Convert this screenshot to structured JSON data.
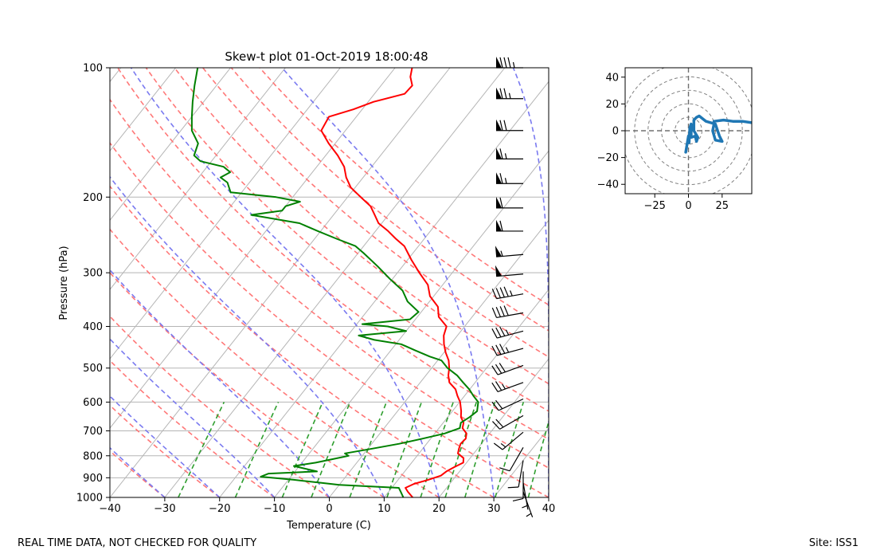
{
  "footer": {
    "left": "REAL TIME DATA, NOT CHECKED FOR QUALITY",
    "right": "Site: ISS1"
  },
  "chart_data": [
    {
      "type": "line",
      "subtype": "skew-t",
      "title": "Skew-t plot 01-Oct-2019 18:00:48",
      "xlabel": "Temperature (C)",
      "ylabel": "Pressure (hPa)",
      "xlim": [
        -40,
        40
      ],
      "ylim": [
        1000,
        100
      ],
      "yscale": "log",
      "skew_deg_per_decade": 62,
      "x_ticks": [
        "−40",
        "−30",
        "−20",
        "−10",
        "0",
        "10",
        "20",
        "30",
        "40"
      ],
      "x_tick_values": [
        -40,
        -30,
        -20,
        -10,
        0,
        10,
        20,
        30,
        40
      ],
      "y_ticks": [
        100,
        200,
        300,
        400,
        500,
        600,
        700,
        800,
        900,
        1000
      ],
      "grid": true,
      "colors": {
        "temperature": "#ff0000",
        "dewpoint": "#008000",
        "dry_adiabat": "#ff7878",
        "moist_adiabat": "#7a7af0",
        "mixing_ratio": "#2e9e2e",
        "isotherm": "#b5b5b5",
        "barb": "#000000"
      },
      "series": [
        {
          "name": "Temperature",
          "points": [
            [
              1000,
              15.2
            ],
            [
              970,
              13.5
            ],
            [
              950,
              12.5
            ],
            [
              930,
              13.5
            ],
            [
              910,
              15.5
            ],
            [
              890,
              17.2
            ],
            [
              870,
              17.6
            ],
            [
              850,
              18.4
            ],
            [
              830,
              19.4
            ],
            [
              810,
              18.8
            ],
            [
              790,
              17.1
            ],
            [
              770,
              16.6
            ],
            [
              750,
              16.2
            ],
            [
              730,
              16.4
            ],
            [
              710,
              15.8
            ],
            [
              690,
              14.3
            ],
            [
              670,
              13.7
            ],
            [
              650,
              12.4
            ],
            [
              630,
              11.6
            ],
            [
              600,
              10.1
            ],
            [
              580,
              8.7
            ],
            [
              560,
              7.4
            ],
            [
              540,
              5.3
            ],
            [
              520,
              4.1
            ],
            [
              500,
              3.2
            ],
            [
              480,
              2.0
            ],
            [
              460,
              0.3
            ],
            [
              440,
              -1.2
            ],
            [
              420,
              -2.5
            ],
            [
              400,
              -3.3
            ],
            [
              380,
              -6.1
            ],
            [
              360,
              -7.7
            ],
            [
              340,
              -10.7
            ],
            [
              320,
              -12.7
            ],
            [
              300,
              -16.0
            ],
            [
              280,
              -19.3
            ],
            [
              260,
              -22.6
            ],
            [
              250,
              -25.2
            ],
            [
              240,
              -27.7
            ],
            [
              230,
              -30.6
            ],
            [
              220,
              -32.5
            ],
            [
              210,
              -34.5
            ],
            [
              200,
              -37.6
            ],
            [
              190,
              -40.8
            ],
            [
              180,
              -43.1
            ],
            [
              170,
              -45.0
            ],
            [
              160,
              -47.8
            ],
            [
              150,
              -51.2
            ],
            [
              140,
              -54.4
            ],
            [
              130,
              -55.0
            ],
            [
              125,
              -51.6
            ],
            [
              120,
              -49.0
            ],
            [
              115,
              -44.5
            ],
            [
              110,
              -44.3
            ],
            [
              105,
              -45.9
            ],
            [
              100,
              -46.9
            ]
          ]
        },
        {
          "name": "Dewpoint",
          "points": [
            [
              1000,
              13.5
            ],
            [
              970,
              12.2
            ],
            [
              950,
              11.3
            ],
            [
              935,
              0.0
            ],
            [
              925,
              -3.5
            ],
            [
              910,
              -9.0
            ],
            [
              895,
              -15.5
            ],
            [
              880,
              -14.5
            ],
            [
              870,
              -6.0
            ],
            [
              860,
              -8.0
            ],
            [
              845,
              -11.0
            ],
            [
              830,
              -7.5
            ],
            [
              815,
              -5.0
            ],
            [
              800,
              -2.5
            ],
            [
              790,
              -3.5
            ],
            [
              770,
              0.8
            ],
            [
              750,
              5.0
            ],
            [
              730,
              8.5
            ],
            [
              710,
              11.8
            ],
            [
              690,
              13.8
            ],
            [
              670,
              13.2
            ],
            [
              650,
              14.0
            ],
            [
              630,
              14.5
            ],
            [
              600,
              13.4
            ],
            [
              580,
              11.6
            ],
            [
              560,
              9.9
            ],
            [
              540,
              7.8
            ],
            [
              520,
              5.7
            ],
            [
              500,
              2.9
            ],
            [
              480,
              0.7
            ],
            [
              470,
              -2.0
            ],
            [
              455,
              -5.5
            ],
            [
              440,
              -9.0
            ],
            [
              430,
              -14.5
            ],
            [
              420,
              -18.0
            ],
            [
              410,
              -10.0
            ],
            [
              400,
              -14.0
            ],
            [
              395,
              -19.0
            ],
            [
              385,
              -11.0
            ],
            [
              370,
              -10.5
            ],
            [
              350,
              -14.0
            ],
            [
              330,
              -16.5
            ],
            [
              310,
              -20.5
            ],
            [
              290,
              -24.5
            ],
            [
              270,
              -29.0
            ],
            [
              260,
              -31.5
            ],
            [
              250,
              -36.0
            ],
            [
              240,
              -40.5
            ],
            [
              230,
              -45.0
            ],
            [
              220,
              -55.0
            ],
            [
              215,
              -50.0
            ],
            [
              210,
              -50.0
            ],
            [
              205,
              -48.0
            ],
            [
              200,
              -53.0
            ],
            [
              195,
              -62.0
            ],
            [
              190,
              -63.0
            ],
            [
              185,
              -64.0
            ],
            [
              180,
              -66.0
            ],
            [
              175,
              -65.0
            ],
            [
              170,
              -67.0
            ],
            [
              165,
              -72.0
            ],
            [
              160,
              -74.0
            ],
            [
              150,
              -75.0
            ],
            [
              140,
              -78.0
            ],
            [
              130,
              -80.0
            ],
            [
              120,
              -82.0
            ],
            [
              110,
              -84.0
            ],
            [
              100,
              -86.0
            ]
          ]
        }
      ],
      "wind_barbs": {
        "pressure_hpa": [
          100,
          118,
          140,
          163,
          186,
          212,
          240,
          272,
          302,
          336,
          372,
          410,
          450,
          493,
          540,
          590,
          645,
          705,
          765,
          820,
          870,
          925,
          970
        ],
        "speed_kt": [
          85,
          75,
          70,
          65,
          65,
          60,
          60,
          55,
          50,
          45,
          40,
          35,
          35,
          30,
          25,
          20,
          20,
          15,
          10,
          10,
          10,
          5,
          5
        ],
        "direction_deg": [
          270,
          270,
          270,
          270,
          270,
          270,
          270,
          265,
          265,
          260,
          260,
          255,
          255,
          250,
          250,
          245,
          240,
          230,
          210,
          190,
          180,
          170,
          160
        ]
      }
    },
    {
      "type": "line",
      "subtype": "hodograph",
      "xlim": [
        -47,
        47
      ],
      "ylim": [
        -47,
        47
      ],
      "x_ticks": [
        "−25",
        "0",
        "25"
      ],
      "x_tick_values": [
        -25,
        0,
        25
      ],
      "y_ticks": [
        "−40",
        "−20",
        "0",
        "20",
        "40"
      ],
      "y_tick_values": [
        -40,
        -20,
        0,
        20,
        40
      ],
      "ring_radii": [
        10,
        20,
        30,
        40,
        50
      ],
      "line_color": "#1f77b4",
      "series": [
        {
          "name": "Hodograph",
          "points": [
            [
              -2,
              -16
            ],
            [
              -1,
              -10
            ],
            [
              0,
              -4
            ],
            [
              0.5,
              -9
            ],
            [
              1,
              2
            ],
            [
              2,
              5
            ],
            [
              2,
              -5
            ],
            [
              5,
              -4
            ],
            [
              6,
              -8
            ],
            [
              7,
              -5
            ],
            [
              4,
              0
            ],
            [
              4,
              8
            ],
            [
              6,
              10
            ],
            [
              8,
              11
            ],
            [
              13,
              7
            ],
            [
              20,
              5
            ],
            [
              23,
              -4
            ],
            [
              25,
              -8
            ],
            [
              20,
              -7
            ],
            [
              18,
              0
            ],
            [
              19,
              5
            ],
            [
              19,
              7
            ],
            [
              26,
              8
            ],
            [
              33,
              7
            ],
            [
              40,
              7
            ],
            [
              47,
              6
            ]
          ]
        }
      ]
    }
  ]
}
